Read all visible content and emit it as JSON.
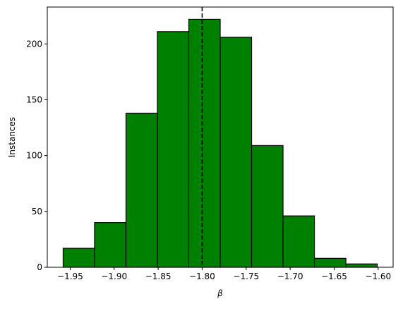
{
  "chart_data": {
    "type": "bar",
    "histogram": true,
    "bin_edges": [
      -1.958,
      -1.9223,
      -1.8866,
      -1.8509,
      -1.8152,
      -1.7795,
      -1.7438,
      -1.7081,
      -1.6724,
      -1.6367,
      -1.601
    ],
    "values": [
      17,
      40,
      138,
      211,
      222,
      206,
      109,
      46,
      8,
      3
    ],
    "xlabel": "β",
    "ylabel": "Instances",
    "xlim": [
      -1.976,
      -1.583
    ],
    "ylim": [
      0,
      233
    ],
    "xticks": [
      -1.95,
      -1.9,
      -1.85,
      -1.8,
      -1.75,
      -1.7,
      -1.65,
      -1.6
    ],
    "xtick_labels": [
      "−1.95",
      "−1.90",
      "−1.85",
      "−1.80",
      "−1.75",
      "−1.70",
      "−1.65",
      "−1.60"
    ],
    "yticks": [
      0,
      50,
      100,
      150,
      200
    ],
    "ytick_labels": [
      "0",
      "50",
      "100",
      "150",
      "200"
    ],
    "reference_line": {
      "x": -1.8,
      "style": "dashed",
      "color": "#000000"
    },
    "bar_color": "#008000",
    "edge_color": "#000000",
    "grid": false,
    "legend": false
  }
}
